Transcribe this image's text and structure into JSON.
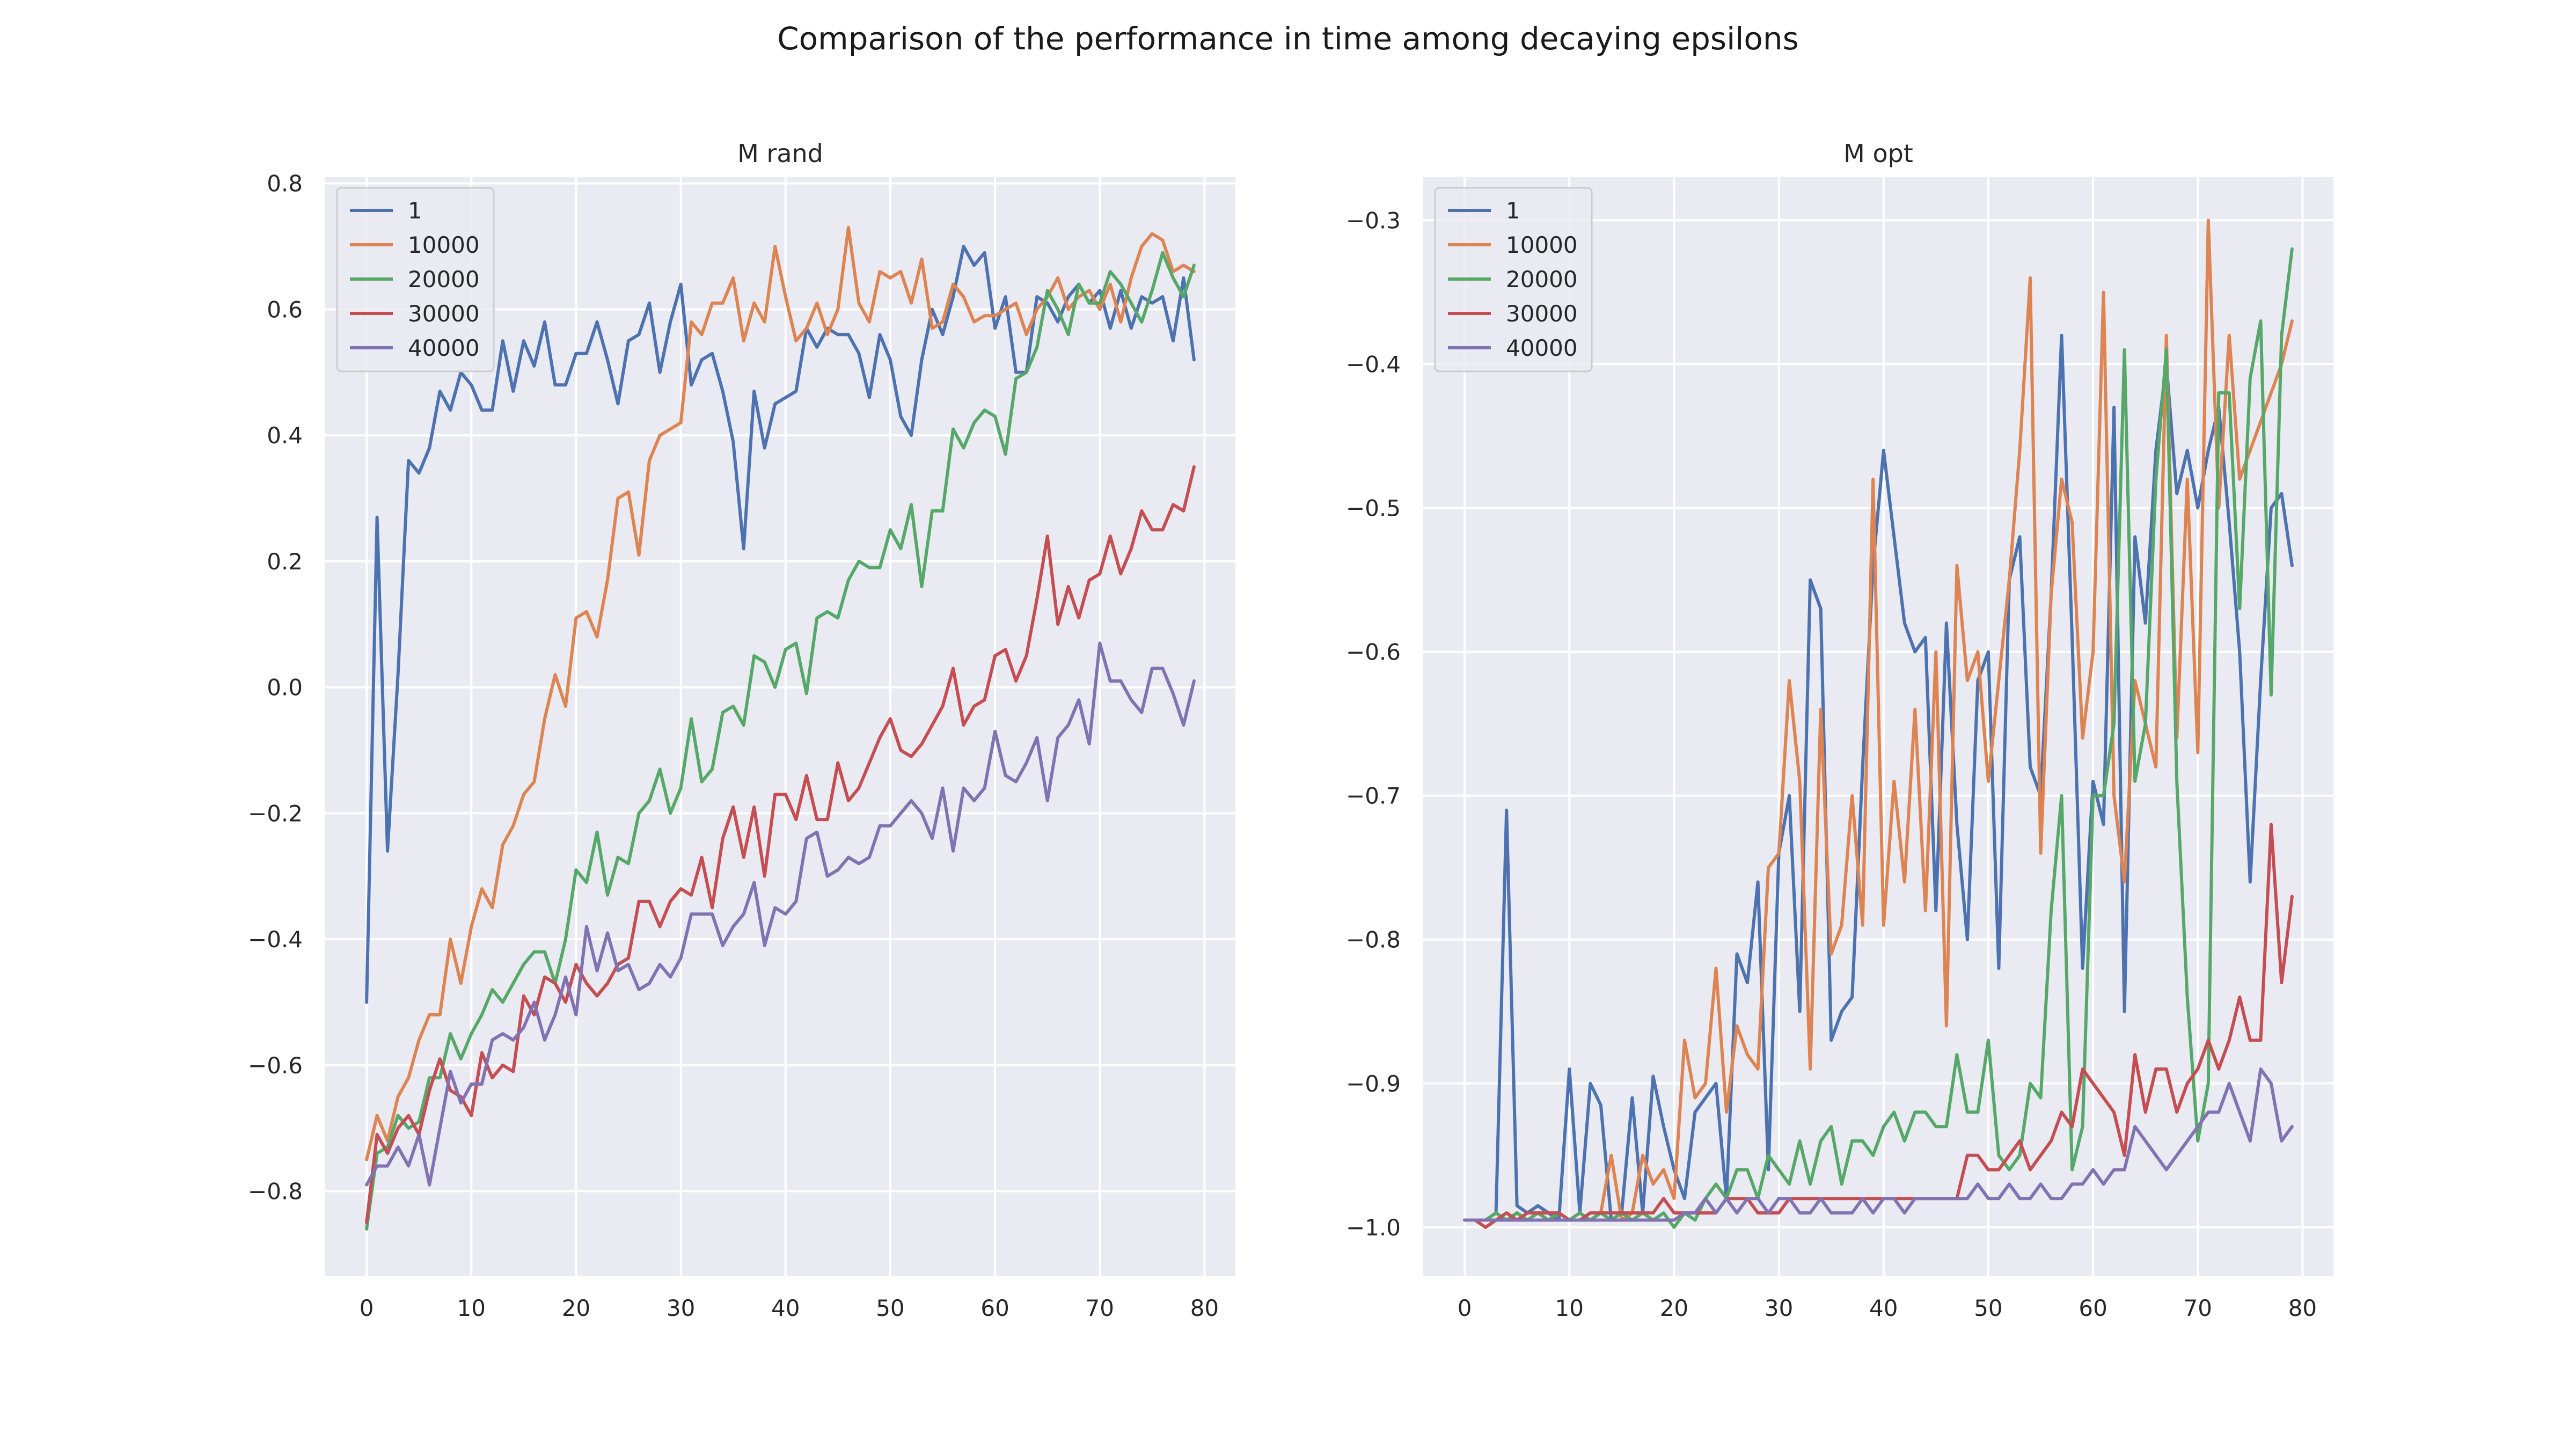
{
  "figure": {
    "title": "Comparison of the performance in time among decaying epsilons"
  },
  "chart_data": [
    {
      "type": "line",
      "title": "M rand",
      "xlabel": "",
      "ylabel": "",
      "xlim": [
        -3.95,
        82.95
      ],
      "ylim": [
        -0.935,
        0.81
      ],
      "xticks": [
        0,
        10,
        20,
        30,
        40,
        50,
        60,
        70,
        80
      ],
      "yticks": [
        -0.8,
        -0.6,
        -0.4,
        -0.2,
        0.0,
        0.2,
        0.4,
        0.6,
        0.8
      ],
      "ytick_labels": [
        "−0.8",
        "−0.6",
        "−0.4",
        "−0.2",
        "0.0",
        "0.2",
        "0.4",
        "0.6",
        "0.8"
      ],
      "grid": true,
      "legend_position": "upper-left",
      "x": [
        0,
        1,
        2,
        3,
        4,
        5,
        6,
        7,
        8,
        9,
        10,
        11,
        12,
        13,
        14,
        15,
        16,
        17,
        18,
        19,
        20,
        21,
        22,
        23,
        24,
        25,
        26,
        27,
        28,
        29,
        30,
        31,
        32,
        33,
        34,
        35,
        36,
        37,
        38,
        39,
        40,
        41,
        42,
        43,
        44,
        45,
        46,
        47,
        48,
        49,
        50,
        51,
        52,
        53,
        54,
        55,
        56,
        57,
        58,
        59,
        60,
        61,
        62,
        63,
        64,
        65,
        66,
        67,
        68,
        69,
        70,
        71,
        72,
        73,
        74,
        75,
        76,
        77,
        78,
        79
      ],
      "series": [
        {
          "name": "1",
          "color": "#4c72b0",
          "values": [
            -0.5,
            0.27,
            -0.26,
            0.02,
            0.36,
            0.34,
            0.38,
            0.47,
            0.44,
            0.5,
            0.48,
            0.44,
            0.44,
            0.55,
            0.47,
            0.55,
            0.51,
            0.58,
            0.48,
            0.48,
            0.53,
            0.53,
            0.58,
            0.52,
            0.45,
            0.55,
            0.56,
            0.61,
            0.5,
            0.58,
            0.64,
            0.48,
            0.52,
            0.53,
            0.47,
            0.39,
            0.22,
            0.47,
            0.38,
            0.45,
            0.46,
            0.47,
            0.57,
            0.54,
            0.57,
            0.56,
            0.56,
            0.53,
            0.46,
            0.56,
            0.52,
            0.43,
            0.4,
            0.52,
            0.6,
            0.56,
            0.62,
            0.7,
            0.67,
            0.69,
            0.57,
            0.62,
            0.5,
            0.5,
            0.62,
            0.61,
            0.58,
            0.62,
            0.64,
            0.61,
            0.63,
            0.57,
            0.63,
            0.57,
            0.62,
            0.61,
            0.62,
            0.55,
            0.65,
            0.52
          ]
        },
        {
          "name": "10000",
          "color": "#dd8452",
          "values": [
            -0.75,
            -0.68,
            -0.72,
            -0.65,
            -0.62,
            -0.56,
            -0.52,
            -0.52,
            -0.4,
            -0.47,
            -0.38,
            -0.32,
            -0.35,
            -0.25,
            -0.22,
            -0.17,
            -0.15,
            -0.05,
            0.02,
            -0.03,
            0.11,
            0.12,
            0.08,
            0.17,
            0.3,
            0.31,
            0.21,
            0.36,
            0.4,
            0.41,
            0.42,
            0.58,
            0.56,
            0.61,
            0.61,
            0.65,
            0.55,
            0.61,
            0.58,
            0.7,
            0.62,
            0.55,
            0.57,
            0.61,
            0.56,
            0.6,
            0.73,
            0.61,
            0.58,
            0.66,
            0.65,
            0.66,
            0.61,
            0.68,
            0.57,
            0.58,
            0.64,
            0.62,
            0.58,
            0.59,
            0.59,
            0.6,
            0.61,
            0.56,
            0.6,
            0.62,
            0.65,
            0.6,
            0.62,
            0.63,
            0.6,
            0.64,
            0.58,
            0.65,
            0.7,
            0.72,
            0.71,
            0.66,
            0.67,
            0.66
          ]
        },
        {
          "name": "20000",
          "color": "#55a868",
          "values": [
            -0.86,
            -0.74,
            -0.73,
            -0.68,
            -0.7,
            -0.69,
            -0.62,
            -0.62,
            -0.55,
            -0.59,
            -0.55,
            -0.52,
            -0.48,
            -0.5,
            -0.47,
            -0.44,
            -0.42,
            -0.42,
            -0.47,
            -0.4,
            -0.29,
            -0.31,
            -0.23,
            -0.33,
            -0.27,
            -0.28,
            -0.2,
            -0.18,
            -0.13,
            -0.2,
            -0.16,
            -0.05,
            -0.15,
            -0.13,
            -0.04,
            -0.03,
            -0.06,
            0.05,
            0.04,
            0.0,
            0.06,
            0.07,
            -0.01,
            0.11,
            0.12,
            0.11,
            0.17,
            0.2,
            0.19,
            0.19,
            0.25,
            0.22,
            0.29,
            0.16,
            0.28,
            0.28,
            0.41,
            0.38,
            0.42,
            0.44,
            0.43,
            0.37,
            0.49,
            0.5,
            0.54,
            0.63,
            0.6,
            0.56,
            0.64,
            0.61,
            0.61,
            0.66,
            0.64,
            0.61,
            0.58,
            0.63,
            0.69,
            0.65,
            0.62,
            0.67
          ]
        },
        {
          "name": "30000",
          "color": "#c44e52",
          "values": [
            -0.85,
            -0.71,
            -0.74,
            -0.7,
            -0.68,
            -0.71,
            -0.64,
            -0.59,
            -0.64,
            -0.65,
            -0.68,
            -0.58,
            -0.62,
            -0.6,
            -0.61,
            -0.49,
            -0.52,
            -0.46,
            -0.47,
            -0.5,
            -0.44,
            -0.47,
            -0.49,
            -0.47,
            -0.44,
            -0.43,
            -0.34,
            -0.34,
            -0.38,
            -0.34,
            -0.32,
            -0.33,
            -0.27,
            -0.35,
            -0.24,
            -0.19,
            -0.27,
            -0.19,
            -0.3,
            -0.17,
            -0.17,
            -0.21,
            -0.14,
            -0.21,
            -0.21,
            -0.12,
            -0.18,
            -0.16,
            -0.12,
            -0.08,
            -0.05,
            -0.1,
            -0.11,
            -0.09,
            -0.06,
            -0.03,
            0.03,
            -0.06,
            -0.03,
            -0.02,
            0.05,
            0.06,
            0.01,
            0.05,
            0.14,
            0.24,
            0.1,
            0.16,
            0.11,
            0.17,
            0.18,
            0.24,
            0.18,
            0.22,
            0.28,
            0.25,
            0.25,
            0.29,
            0.28,
            0.35
          ]
        },
        {
          "name": "40000",
          "color": "#8172b2",
          "values": [
            -0.79,
            -0.76,
            -0.76,
            -0.73,
            -0.76,
            -0.71,
            -0.79,
            -0.7,
            -0.61,
            -0.66,
            -0.63,
            -0.63,
            -0.56,
            -0.55,
            -0.56,
            -0.54,
            -0.5,
            -0.56,
            -0.52,
            -0.46,
            -0.52,
            -0.38,
            -0.45,
            -0.39,
            -0.45,
            -0.44,
            -0.48,
            -0.47,
            -0.44,
            -0.46,
            -0.43,
            -0.36,
            -0.36,
            -0.36,
            -0.41,
            -0.38,
            -0.36,
            -0.31,
            -0.41,
            -0.35,
            -0.36,
            -0.34,
            -0.24,
            -0.23,
            -0.3,
            -0.29,
            -0.27,
            -0.28,
            -0.27,
            -0.22,
            -0.22,
            -0.2,
            -0.18,
            -0.2,
            -0.24,
            -0.16,
            -0.26,
            -0.16,
            -0.18,
            -0.16,
            -0.07,
            -0.14,
            -0.15,
            -0.12,
            -0.08,
            -0.18,
            -0.08,
            -0.06,
            -0.02,
            -0.09,
            0.07,
            0.01,
            0.01,
            -0.02,
            -0.04,
            0.03,
            0.03,
            -0.01,
            -0.06,
            0.01
          ]
        }
      ]
    },
    {
      "type": "line",
      "title": "M opt",
      "xlabel": "",
      "ylabel": "",
      "xlim": [
        -3.95,
        82.95
      ],
      "ylim": [
        -1.034,
        -0.27
      ],
      "xticks": [
        0,
        10,
        20,
        30,
        40,
        50,
        60,
        70,
        80
      ],
      "yticks": [
        -1.0,
        -0.9,
        -0.8,
        -0.7,
        -0.6,
        -0.5,
        -0.4,
        -0.3
      ],
      "ytick_labels": [
        "−1.0",
        "−0.9",
        "−0.8",
        "−0.7",
        "−0.6",
        "−0.5",
        "−0.4",
        "−0.3"
      ],
      "grid": true,
      "legend_position": "upper-left",
      "x": [
        0,
        1,
        2,
        3,
        4,
        5,
        6,
        7,
        8,
        9,
        10,
        11,
        12,
        13,
        14,
        15,
        16,
        17,
        18,
        19,
        20,
        21,
        22,
        23,
        24,
        25,
        26,
        27,
        28,
        29,
        30,
        31,
        32,
        33,
        34,
        35,
        36,
        37,
        38,
        39,
        40,
        41,
        42,
        43,
        44,
        45,
        46,
        47,
        48,
        49,
        50,
        51,
        52,
        53,
        54,
        55,
        56,
        57,
        58,
        59,
        60,
        61,
        62,
        63,
        64,
        65,
        66,
        67,
        68,
        69,
        70,
        71,
        72,
        73,
        74,
        75,
        76,
        77,
        78,
        79
      ],
      "series": [
        {
          "name": "1",
          "color": "#4c72b0",
          "values": [
            -0.995,
            -0.995,
            -0.995,
            -0.99,
            -0.71,
            -0.985,
            -0.99,
            -0.985,
            -0.99,
            -0.995,
            -0.89,
            -0.99,
            -0.9,
            -0.915,
            -0.995,
            -0.99,
            -0.91,
            -0.99,
            -0.895,
            -0.93,
            -0.96,
            -0.98,
            -0.92,
            -0.91,
            -0.9,
            -0.98,
            -0.81,
            -0.83,
            -0.76,
            -0.96,
            -0.74,
            -0.7,
            -0.85,
            -0.55,
            -0.57,
            -0.87,
            -0.85,
            -0.84,
            -0.68,
            -0.54,
            -0.46,
            -0.52,
            -0.58,
            -0.6,
            -0.59,
            -0.78,
            -0.58,
            -0.72,
            -0.8,
            -0.62,
            -0.6,
            -0.82,
            -0.55,
            -0.52,
            -0.68,
            -0.7,
            -0.56,
            -0.38,
            -0.59,
            -0.82,
            -0.69,
            -0.72,
            -0.43,
            -0.85,
            -0.52,
            -0.58,
            -0.46,
            -0.4,
            -0.49,
            -0.46,
            -0.5,
            -0.46,
            -0.43,
            -0.51,
            -0.6,
            -0.76,
            -0.62,
            -0.5,
            -0.49,
            -0.54
          ]
        },
        {
          "name": "10000",
          "color": "#dd8452",
          "values": [
            -0.995,
            -0.995,
            -0.995,
            -0.99,
            -0.995,
            -0.99,
            -0.995,
            -0.99,
            -0.995,
            -0.99,
            -0.995,
            -0.99,
            -0.995,
            -0.99,
            -0.95,
            -0.995,
            -0.99,
            -0.95,
            -0.97,
            -0.96,
            -0.98,
            -0.87,
            -0.91,
            -0.9,
            -0.82,
            -0.92,
            -0.86,
            -0.88,
            -0.89,
            -0.75,
            -0.74,
            -0.62,
            -0.69,
            -0.89,
            -0.64,
            -0.81,
            -0.79,
            -0.7,
            -0.79,
            -0.48,
            -0.79,
            -0.69,
            -0.76,
            -0.64,
            -0.78,
            -0.6,
            -0.86,
            -0.54,
            -0.62,
            -0.6,
            -0.69,
            -0.62,
            -0.55,
            -0.46,
            -0.34,
            -0.74,
            -0.56,
            -0.48,
            -0.51,
            -0.66,
            -0.6,
            -0.35,
            -0.7,
            -0.76,
            -0.62,
            -0.65,
            -0.68,
            -0.38,
            -0.66,
            -0.48,
            -0.67,
            -0.3,
            -0.5,
            -0.38,
            -0.48,
            -0.46,
            -0.44,
            -0.42,
            -0.4,
            -0.37
          ]
        },
        {
          "name": "20000",
          "color": "#55a868",
          "values": [
            -0.995,
            -0.995,
            -0.995,
            -0.99,
            -0.995,
            -0.99,
            -0.995,
            -0.99,
            -0.995,
            -0.99,
            -0.995,
            -0.99,
            -0.995,
            -0.99,
            -0.995,
            -0.99,
            -0.995,
            -0.99,
            -0.995,
            -0.99,
            -1.0,
            -0.99,
            -0.995,
            -0.98,
            -0.97,
            -0.98,
            -0.96,
            -0.96,
            -0.98,
            -0.95,
            -0.96,
            -0.97,
            -0.94,
            -0.97,
            -0.94,
            -0.93,
            -0.97,
            -0.94,
            -0.94,
            -0.95,
            -0.93,
            -0.92,
            -0.94,
            -0.92,
            -0.92,
            -0.93,
            -0.93,
            -0.88,
            -0.92,
            -0.92,
            -0.87,
            -0.95,
            -0.96,
            -0.95,
            -0.9,
            -0.91,
            -0.78,
            -0.7,
            -0.96,
            -0.93,
            -0.7,
            -0.7,
            -0.65,
            -0.39,
            -0.69,
            -0.65,
            -0.48,
            -0.39,
            -0.69,
            -0.84,
            -0.94,
            -0.9,
            -0.42,
            -0.42,
            -0.57,
            -0.41,
            -0.37,
            -0.63,
            -0.38,
            -0.32
          ]
        },
        {
          "name": "30000",
          "color": "#c44e52",
          "values": [
            -0.995,
            -0.995,
            -1.0,
            -0.995,
            -0.99,
            -0.995,
            -0.99,
            -0.99,
            -0.99,
            -0.99,
            -0.995,
            -0.995,
            -0.99,
            -0.99,
            -0.99,
            -0.99,
            -0.99,
            -0.99,
            -0.99,
            -0.98,
            -0.99,
            -0.99,
            -0.99,
            -0.99,
            -0.99,
            -0.98,
            -0.98,
            -0.98,
            -0.99,
            -0.99,
            -0.99,
            -0.98,
            -0.98,
            -0.98,
            -0.98,
            -0.98,
            -0.98,
            -0.98,
            -0.98,
            -0.98,
            -0.98,
            -0.98,
            -0.98,
            -0.98,
            -0.98,
            -0.98,
            -0.98,
            -0.98,
            -0.95,
            -0.95,
            -0.96,
            -0.96,
            -0.95,
            -0.94,
            -0.96,
            -0.95,
            -0.94,
            -0.92,
            -0.93,
            -0.89,
            -0.9,
            -0.91,
            -0.92,
            -0.95,
            -0.88,
            -0.92,
            -0.89,
            -0.89,
            -0.92,
            -0.9,
            -0.89,
            -0.87,
            -0.89,
            -0.87,
            -0.84,
            -0.87,
            -0.87,
            -0.72,
            -0.83,
            -0.77
          ]
        },
        {
          "name": "40000",
          "color": "#8172b2",
          "values": [
            -0.995,
            -0.995,
            -0.995,
            -0.995,
            -0.995,
            -0.995,
            -0.995,
            -0.995,
            -0.995,
            -0.995,
            -0.995,
            -0.995,
            -0.995,
            -0.995,
            -0.995,
            -0.995,
            -0.995,
            -0.995,
            -0.995,
            -0.995,
            -0.995,
            -0.99,
            -0.99,
            -0.98,
            -0.99,
            -0.98,
            -0.99,
            -0.98,
            -0.98,
            -0.99,
            -0.98,
            -0.98,
            -0.99,
            -0.99,
            -0.98,
            -0.99,
            -0.99,
            -0.99,
            -0.98,
            -0.99,
            -0.98,
            -0.98,
            -0.99,
            -0.98,
            -0.98,
            -0.98,
            -0.98,
            -0.98,
            -0.98,
            -0.97,
            -0.98,
            -0.98,
            -0.97,
            -0.98,
            -0.98,
            -0.97,
            -0.98,
            -0.98,
            -0.97,
            -0.97,
            -0.96,
            -0.97,
            -0.96,
            -0.96,
            -0.93,
            -0.94,
            -0.95,
            -0.96,
            -0.95,
            -0.94,
            -0.93,
            -0.92,
            -0.92,
            -0.9,
            -0.92,
            -0.94,
            -0.89,
            -0.9,
            -0.94,
            -0.93
          ]
        }
      ]
    }
  ]
}
